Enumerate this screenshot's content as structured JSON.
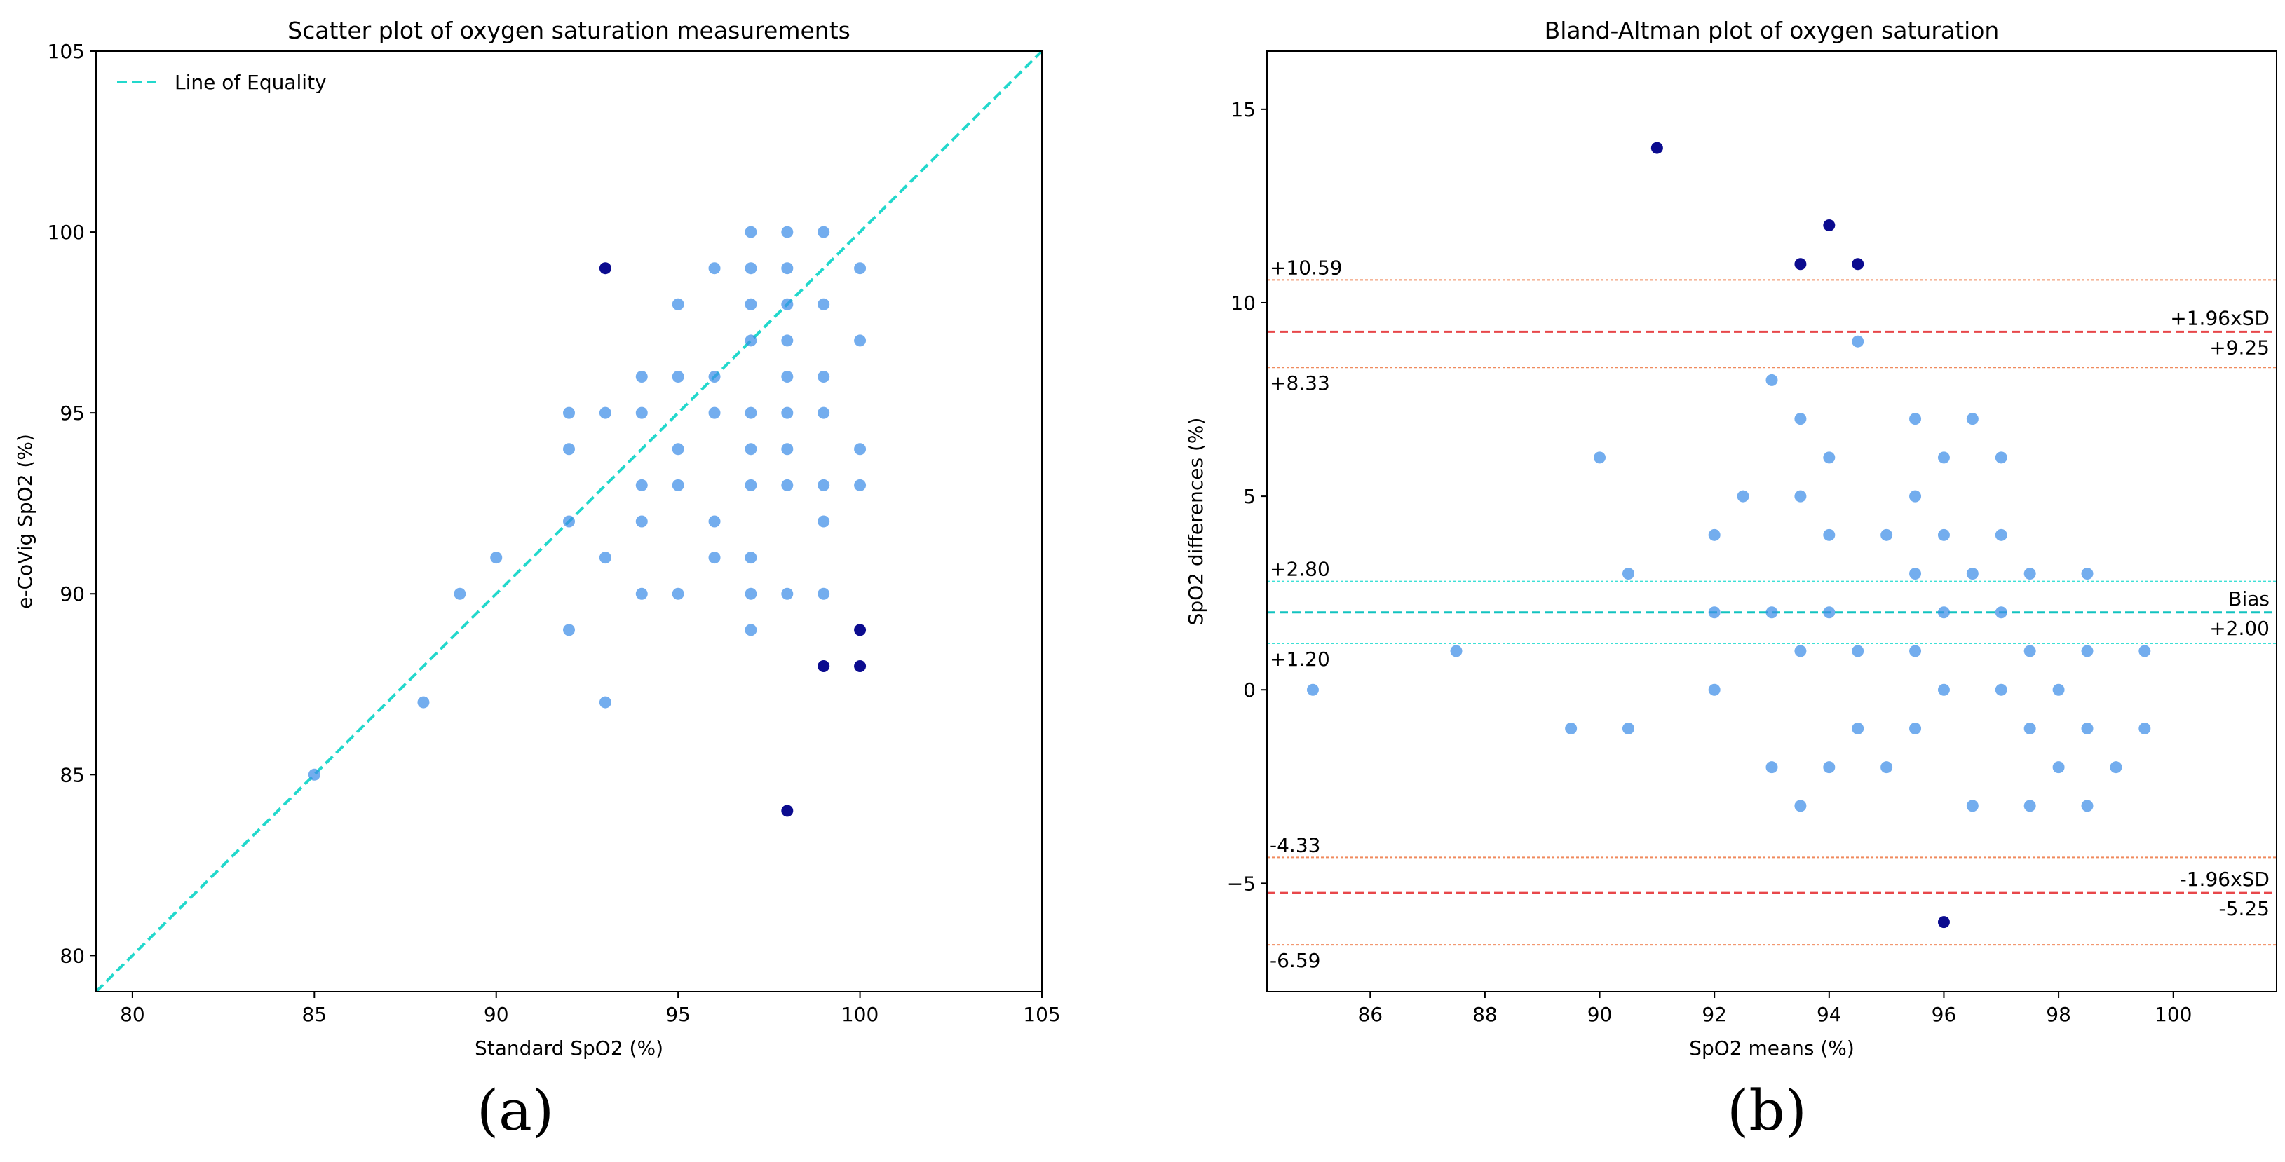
{
  "panels": {
    "a": {
      "caption": "(a)",
      "chart_data": {
        "type": "scatter",
        "title": "Scatter plot of oxygen saturation measurements",
        "xlabel": "Standard SpO2 (%)",
        "ylabel": "e-CoVig SpO2 (%)",
        "xlim": [
          79,
          105
        ],
        "ylim": [
          79,
          105
        ],
        "xticks": [
          80,
          85,
          90,
          95,
          100,
          105
        ],
        "yticks": [
          80,
          85,
          90,
          95,
          100,
          105
        ],
        "legend": {
          "label": "Line of Equality",
          "position": "top-left"
        },
        "reference_line": {
          "label": "Line of Equality",
          "from": [
            79,
            79
          ],
          "to": [
            105,
            105
          ],
          "color": "#22d8cc"
        },
        "points": [
          [
            85,
            85
          ],
          [
            88,
            87
          ],
          [
            89,
            90
          ],
          [
            90,
            91
          ],
          [
            92,
            95
          ],
          [
            92,
            94
          ],
          [
            92,
            92
          ],
          [
            92,
            89
          ],
          [
            93,
            95
          ],
          [
            93,
            91
          ],
          [
            93,
            87
          ],
          [
            94,
            96
          ],
          [
            94,
            95
          ],
          [
            94,
            93
          ],
          [
            94,
            92
          ],
          [
            94,
            90
          ],
          [
            95,
            98
          ],
          [
            95,
            96
          ],
          [
            95,
            94
          ],
          [
            95,
            93
          ],
          [
            95,
            90
          ],
          [
            96,
            99
          ],
          [
            96,
            96
          ],
          [
            96,
            95
          ],
          [
            96,
            92
          ],
          [
            96,
            91
          ],
          [
            97,
            100
          ],
          [
            97,
            99
          ],
          [
            97,
            98
          ],
          [
            97,
            97
          ],
          [
            97,
            95
          ],
          [
            97,
            94
          ],
          [
            97,
            93
          ],
          [
            97,
            91
          ],
          [
            97,
            90
          ],
          [
            97,
            89
          ],
          [
            98,
            100
          ],
          [
            98,
            99
          ],
          [
            98,
            98
          ],
          [
            98,
            97
          ],
          [
            98,
            96
          ],
          [
            98,
            95
          ],
          [
            98,
            94
          ],
          [
            98,
            93
          ],
          [
            98,
            90
          ],
          [
            99,
            100
          ],
          [
            99,
            98
          ],
          [
            99,
            96
          ],
          [
            99,
            95
          ],
          [
            99,
            93
          ],
          [
            99,
            92
          ],
          [
            99,
            90
          ],
          [
            100,
            99
          ],
          [
            100,
            97
          ],
          [
            100,
            94
          ],
          [
            100,
            93
          ]
        ],
        "outliers": [
          [
            93,
            99
          ],
          [
            99,
            88
          ],
          [
            100,
            89
          ],
          [
            100,
            88
          ],
          [
            98,
            84
          ]
        ],
        "colors": {
          "point": "#3d8ee8",
          "outlier": "#0b0b8f"
        }
      }
    },
    "b": {
      "caption": "(b)",
      "chart_data": {
        "type": "scatter",
        "title": "Bland-Altman plot of oxygen saturation",
        "xlabel": "SpO2 means (%)",
        "ylabel": "SpO2 differences (%)",
        "xlim": [
          84.2,
          101.8
        ],
        "ylim": [
          -7.8,
          16.5
        ],
        "xticks": [
          86,
          88,
          90,
          92,
          94,
          96,
          98,
          100
        ],
        "yticks": [
          -5,
          0,
          5,
          10,
          15
        ],
        "reference_lines": [
          {
            "value": 10.59,
            "label": "+10.59",
            "style": "ci",
            "color": "#f08a5d"
          },
          {
            "value": 9.25,
            "label": "+9.25",
            "name": "+1.96xSD",
            "style": "loa",
            "color": "#e8474a"
          },
          {
            "value": 8.33,
            "label": "+8.33",
            "style": "ci",
            "color": "#f08a5d"
          },
          {
            "value": 2.8,
            "label": "+2.80",
            "style": "ci",
            "color": "#3ee0d6"
          },
          {
            "value": 2.0,
            "label": "+2.00",
            "name": "Bias",
            "style": "bias",
            "color": "#12c3c0"
          },
          {
            "value": 1.2,
            "label": "+1.20",
            "style": "ci",
            "color": "#3ee0d6"
          },
          {
            "value": -4.33,
            "label": "-4.33",
            "style": "ci",
            "color": "#f08a5d"
          },
          {
            "value": -5.25,
            "label": "-5.25",
            "name": "-1.96xSD",
            "style": "loa",
            "color": "#e8474a"
          },
          {
            "value": -6.59,
            "label": "-6.59",
            "style": "ci",
            "color": "#f08a5d"
          }
        ],
        "points": [
          [
            85,
            0
          ],
          [
            87.5,
            1
          ],
          [
            89.5,
            -1
          ],
          [
            90,
            6
          ],
          [
            90.5,
            3
          ],
          [
            90.5,
            -1
          ],
          [
            92,
            4
          ],
          [
            92,
            2
          ],
          [
            92,
            0
          ],
          [
            92.5,
            5
          ],
          [
            93,
            8
          ],
          [
            93,
            2
          ],
          [
            93,
            -2
          ],
          [
            93.5,
            7
          ],
          [
            93.5,
            5
          ],
          [
            93.5,
            1
          ],
          [
            93.5,
            -3
          ],
          [
            94,
            6
          ],
          [
            94,
            4
          ],
          [
            94,
            2
          ],
          [
            94,
            -2
          ],
          [
            94.5,
            9
          ],
          [
            94.5,
            1
          ],
          [
            94.5,
            -1
          ],
          [
            95,
            4
          ],
          [
            95,
            -2
          ],
          [
            95.5,
            7
          ],
          [
            95.5,
            5
          ],
          [
            95.5,
            3
          ],
          [
            95.5,
            1
          ],
          [
            95.5,
            -1
          ],
          [
            96,
            6
          ],
          [
            96,
            4
          ],
          [
            96,
            2
          ],
          [
            96,
            0
          ],
          [
            96.5,
            7
          ],
          [
            96.5,
            3
          ],
          [
            96.5,
            -3
          ],
          [
            97,
            6
          ],
          [
            97,
            4
          ],
          [
            97,
            2
          ],
          [
            97,
            0
          ],
          [
            97.5,
            3
          ],
          [
            97.5,
            1
          ],
          [
            97.5,
            -1
          ],
          [
            97.5,
            -3
          ],
          [
            98,
            0
          ],
          [
            98,
            -2
          ],
          [
            98.5,
            3
          ],
          [
            98.5,
            1
          ],
          [
            98.5,
            -1
          ],
          [
            98.5,
            -3
          ],
          [
            99,
            -2
          ],
          [
            99.5,
            1
          ],
          [
            99.5,
            -1
          ]
        ],
        "outliers": [
          [
            91,
            14
          ],
          [
            94,
            12
          ],
          [
            93.5,
            11
          ],
          [
            94.5,
            11
          ],
          [
            96,
            -6
          ]
        ],
        "colors": {
          "point": "#3d8ee8",
          "outlier": "#0b0b8f"
        }
      }
    }
  }
}
